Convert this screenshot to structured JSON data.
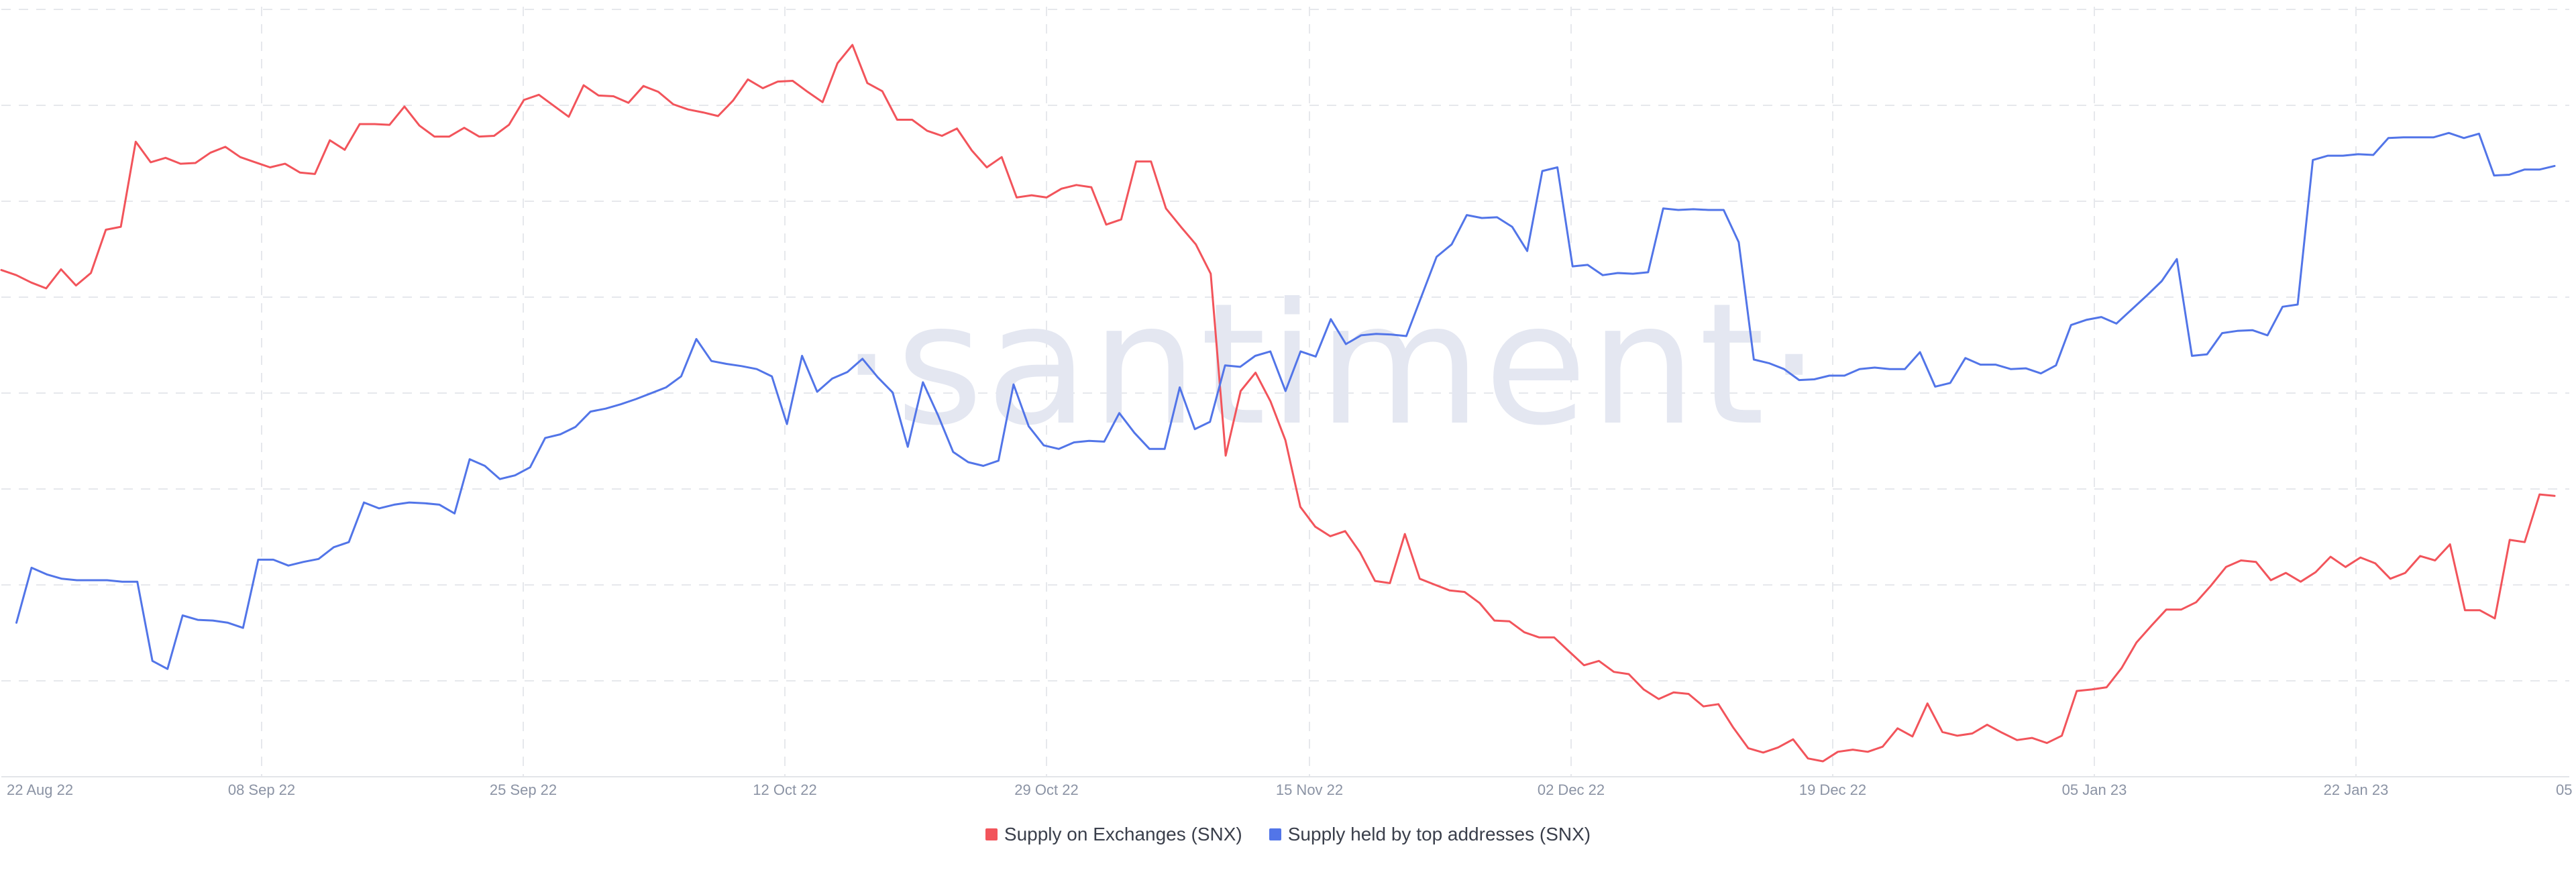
{
  "watermark": "·santiment·",
  "chart_data": {
    "type": "line",
    "title": "",
    "xlabel": "",
    "ylabel": "",
    "x_ticks": [
      "22 Aug 22",
      "08 Sep 22",
      "25 Sep 22",
      "12 Oct 22",
      "29 Oct 22",
      "15 Nov 22",
      "02 Dec 22",
      "19 Dec 22",
      "05 Jan 23",
      "22 Jan 23",
      "05 Feb"
    ],
    "grid": true,
    "legend_position": "bottom-center",
    "series": [
      {
        "name": "Supply on Exchanges (SNX)",
        "color": "#f2545b",
        "values": [
          66.1,
          65.4,
          64.4,
          63.6,
          66.2,
          64.0,
          65.7,
          71.6,
          72.0,
          83.6,
          80.8,
          81.4,
          80.6,
          80.7,
          82.1,
          82.9,
          81.5,
          80.8,
          80.1,
          80.6,
          79.4,
          79.2,
          83.8,
          82.5,
          86.0,
          86.0,
          85.9,
          88.4,
          85.8,
          84.3,
          84.3,
          85.5,
          84.3,
          84.4,
          85.9,
          89.3,
          90.0,
          88.5,
          87.0,
          91.3,
          89.9,
          89.8,
          88.9,
          91.2,
          90.4,
          88.7,
          88.0,
          87.6,
          87.1,
          89.2,
          92.1,
          90.9,
          91.8,
          91.9,
          90.4,
          89.0,
          94.3,
          96.8,
          91.6,
          90.5,
          86.6,
          86.6,
          85.1,
          84.4,
          85.4,
          82.4,
          80.1,
          81.5,
          76.0,
          76.3,
          76.0,
          77.2,
          77.7,
          77.4,
          72.3,
          73.0,
          80.9,
          80.9,
          74.5,
          72.0,
          69.6,
          65.6,
          40.8,
          49.6,
          52.1,
          48.2,
          42.9,
          33.8,
          31.1,
          29.8,
          30.5,
          27.6,
          23.7,
          23.4,
          30.1,
          24.0,
          23.2,
          22.4,
          22.2,
          20.7,
          18.3,
          18.2,
          16.7,
          16.0,
          16.0,
          14.1,
          12.2,
          12.8,
          11.3,
          11.0,
          8.9,
          7.6,
          8.5,
          8.3,
          6.6,
          6.9,
          3.7,
          0.9,
          0.3,
          1.0,
          2.1,
          -0.5,
          -0.9,
          0.4,
          0.7,
          0.4,
          1.1,
          3.6,
          2.5,
          7.0,
          3.1,
          2.6,
          2.9,
          4.1,
          3.0,
          2.0,
          2.3,
          1.6,
          2.6,
          8.7,
          8.9,
          9.2,
          11.8,
          15.3,
          17.6,
          19.8,
          19.8,
          20.8,
          23.1,
          25.6,
          26.5,
          26.3,
          23.8,
          24.8,
          23.6,
          24.9,
          27.0,
          25.6,
          26.9,
          26.1,
          24.0,
          24.8,
          27.1,
          26.5,
          28.7,
          19.7,
          19.7,
          18.6,
          29.3,
          29.0,
          35.5,
          35.3
        ]
      },
      {
        "name": "Supply held by top addresses (SNX)",
        "color": "#5275e8",
        "values": [
          null,
          18.0,
          25.5,
          24.6,
          24.0,
          23.8,
          23.8,
          23.8,
          23.6,
          23.6,
          12.8,
          11.7,
          19.0,
          18.4,
          18.3,
          18.0,
          17.3,
          26.6,
          26.6,
          25.8,
          26.3,
          26.7,
          28.3,
          29.0,
          34.4,
          33.6,
          34.1,
          34.4,
          34.3,
          34.1,
          32.9,
          40.3,
          39.4,
          37.6,
          38.1,
          39.2,
          43.2,
          43.7,
          44.7,
          46.8,
          47.2,
          47.8,
          48.5,
          49.3,
          50.1,
          51.6,
          56.7,
          53.7,
          53.3,
          53.0,
          52.6,
          51.6,
          45.1,
          54.4,
          49.5,
          51.3,
          52.2,
          54.0,
          51.5,
          49.4,
          42.0,
          50.8,
          46.3,
          41.3,
          39.9,
          39.4,
          40.1,
          50.5,
          44.8,
          42.2,
          41.7,
          42.6,
          42.8,
          42.7,
          46.6,
          43.9,
          41.7,
          41.7,
          50.1,
          44.4,
          45.4,
          53.1,
          52.9,
          54.4,
          55.0,
          49.6,
          55.0,
          54.3,
          59.4,
          56.0,
          57.2,
          57.4,
          57.3,
          57.1,
          62.5,
          67.9,
          69.6,
          73.6,
          73.2,
          73.3,
          72.0,
          68.7,
          79.6,
          80.1,
          66.6,
          66.8,
          65.4,
          65.7,
          65.6,
          65.8,
          74.5,
          74.3,
          74.4,
          74.3,
          74.3,
          69.9,
          53.9,
          53.4,
          52.6,
          51.1,
          51.2,
          51.7,
          51.7,
          52.6,
          52.8,
          52.6,
          52.6,
          54.9,
          50.2,
          50.7,
          54.1,
          53.2,
          53.2,
          52.6,
          52.7,
          52.0,
          53.1,
          58.6,
          59.3,
          59.7,
          58.8,
          60.7,
          62.6,
          64.6,
          67.6,
          54.4,
          54.6,
          57.5,
          57.8,
          57.9,
          57.2,
          61.1,
          61.4,
          81.1,
          81.7,
          81.7,
          81.9,
          81.8,
          84.1,
          84.2,
          84.2,
          84.2,
          84.8,
          84.1,
          84.7,
          79.0,
          79.1,
          79.8,
          79.8,
          80.3
        ]
      }
    ]
  }
}
